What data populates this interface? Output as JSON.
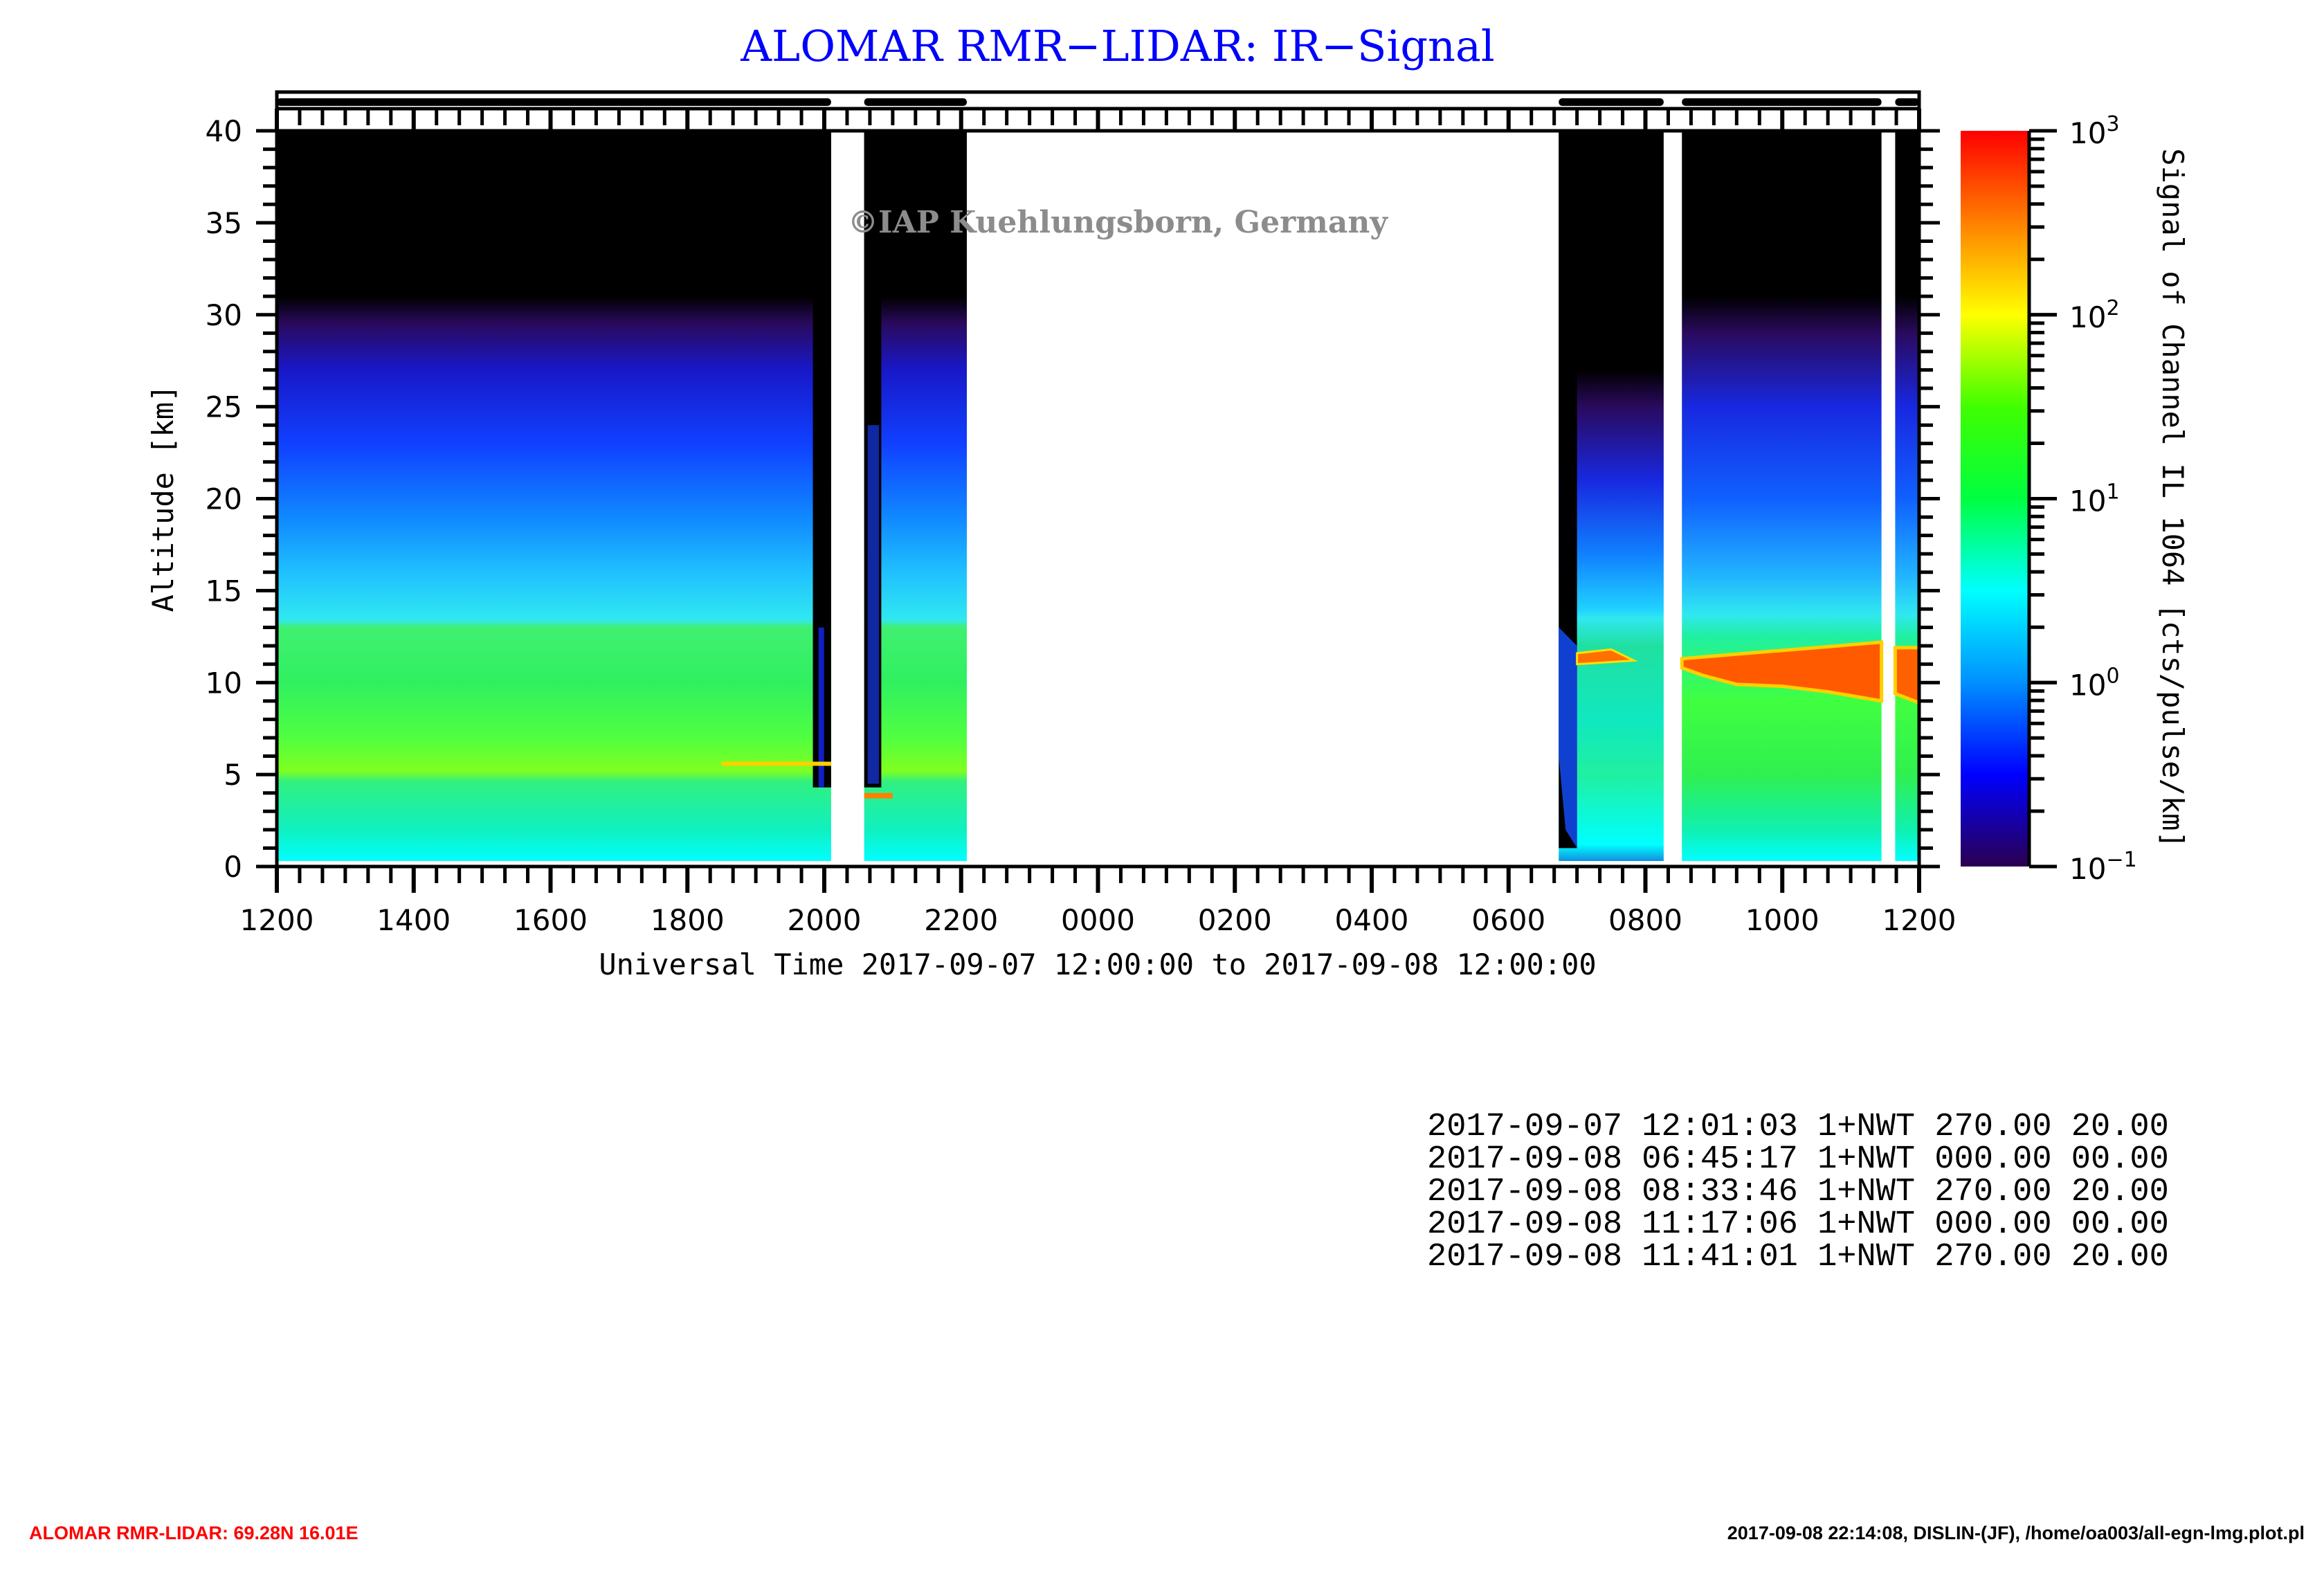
{
  "title": "ALOMAR RMR−LIDAR: IR−Signal",
  "watermark": "©IAP Kuehlungsborn, Germany",
  "chart_data": {
    "type": "heatmap",
    "title": "ALOMAR RMR−LIDAR: IR−Signal",
    "xlabel": "Universal Time 2017-09-07 12:00:00 to 2017-09-08 12:00:00",
    "ylabel": "Altitude [km]",
    "xlim": [
      "2017-09-07T12:00",
      "2017-09-08T12:00"
    ],
    "ylim": [
      0,
      40
    ],
    "x_tick_labels": [
      "1200",
      "1400",
      "1600",
      "1800",
      "2000",
      "2200",
      "0000",
      "0200",
      "0400",
      "0600",
      "0800",
      "1000",
      "1200"
    ],
    "y_tick_labels": [
      "0",
      "5",
      "10",
      "15",
      "20",
      "25",
      "30",
      "35",
      "40"
    ],
    "colorbar": {
      "label": "Signal of Channel IL 1064 [cts/pulse/km]",
      "scale": "log",
      "range": [
        0.1,
        1000
      ],
      "tick_labels": [
        {
          "base": "10",
          "exp": "−1"
        },
        {
          "base": "10",
          "exp": "0"
        },
        {
          "base": "10",
          "exp": "1"
        },
        {
          "base": "10",
          "exp": "2"
        },
        {
          "base": "10",
          "exp": "3"
        }
      ],
      "colors": [
        "#2b0050",
        "#0000ff",
        "#0090ff",
        "#00ffff",
        "#00ff40",
        "#40ff00",
        "#ffff00",
        "#ff8000",
        "#ff0000"
      ]
    },
    "data_periods": [
      {
        "start": "2017-09-07T12:00",
        "end": "2017-09-07T20:06"
      },
      {
        "start": "2017-09-07T20:35",
        "end": "2017-09-07T22:05"
      },
      {
        "start": "2017-09-08T06:44",
        "end": "2017-09-08T08:16"
      },
      {
        "start": "2017-09-08T08:32",
        "end": "2017-09-08T11:27"
      },
      {
        "start": "2017-09-08T11:39",
        "end": "2017-09-08T12:00"
      }
    ],
    "features": {
      "aerosol_layer_top_km": 13,
      "cirrus_cloud_km": [
        9,
        12
      ]
    }
  },
  "info_table": [
    "2017-09-07 12:01:03 1+NWT 270.00 20.00",
    "2017-09-08 06:45:17 1+NWT 000.00 00.00",
    "2017-09-08 08:33:46 1+NWT 270.00 20.00",
    "2017-09-08 11:17:06 1+NWT 000.00 00.00",
    "2017-09-08 11:41:01 1+NWT 270.00 20.00"
  ],
  "footer": {
    "left": "ALOMAR RMR-LIDAR: 69.28N 16.01E",
    "right": "2017-09-08 22:14:08, DISLIN-(JF), /home/oa003/all-egn-lmg.plot.pl"
  }
}
